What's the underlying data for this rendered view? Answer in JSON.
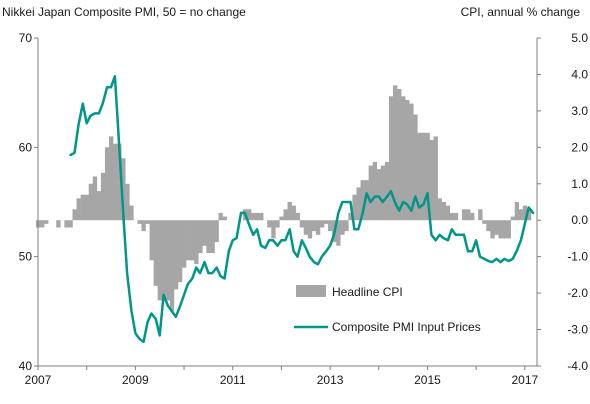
{
  "chart_data": {
    "type": "bar+line",
    "left_axis_label": "Nikkei Japan Composite PMI, 50 = no change",
    "right_axis_label": "CPI, annual % change",
    "left_axis": {
      "min": 40,
      "max": 70,
      "ticks": [
        "40",
        "50",
        "60",
        "70"
      ]
    },
    "right_axis": {
      "min": -4.0,
      "max": 5.0,
      "ticks": [
        "-4.0",
        "-3.0",
        "-2.0",
        "-1.0",
        "0.0",
        "1.0",
        "2.0",
        "3.0",
        "4.0",
        "5.0"
      ]
    },
    "x_axis": {
      "min": 2007.0,
      "max": 2017.25,
      "ticks": [
        "2007",
        "2009",
        "2011",
        "2013",
        "2015",
        "2017"
      ]
    },
    "grid": false,
    "legend_position": "bottom-right",
    "colors": {
      "bars": "#a6a6a6",
      "line": "#00968a",
      "axis": "#7f7f7f"
    },
    "series": [
      {
        "name": "Headline CPI",
        "type": "bar",
        "axis": "right",
        "x": [
          "2007-01",
          "2007-02",
          "2007-03",
          "2007-04",
          "2007-05",
          "2007-06",
          "2007-07",
          "2007-08",
          "2007-09",
          "2007-10",
          "2007-11",
          "2007-12",
          "2008-01",
          "2008-02",
          "2008-03",
          "2008-04",
          "2008-05",
          "2008-06",
          "2008-07",
          "2008-08",
          "2008-09",
          "2008-10",
          "2008-11",
          "2008-12",
          "2009-01",
          "2009-02",
          "2009-03",
          "2009-04",
          "2009-05",
          "2009-06",
          "2009-07",
          "2009-08",
          "2009-09",
          "2009-10",
          "2009-11",
          "2009-12",
          "2010-01",
          "2010-02",
          "2010-03",
          "2010-04",
          "2010-05",
          "2010-06",
          "2010-07",
          "2010-08",
          "2010-09",
          "2010-10",
          "2010-11",
          "2010-12",
          "2011-01",
          "2011-02",
          "2011-03",
          "2011-04",
          "2011-05",
          "2011-06",
          "2011-07",
          "2011-08",
          "2011-09",
          "2011-10",
          "2011-11",
          "2011-12",
          "2012-01",
          "2012-02",
          "2012-03",
          "2012-04",
          "2012-05",
          "2012-06",
          "2012-07",
          "2012-08",
          "2012-09",
          "2012-10",
          "2012-11",
          "2012-12",
          "2013-01",
          "2013-02",
          "2013-03",
          "2013-04",
          "2013-05",
          "2013-06",
          "2013-07",
          "2013-08",
          "2013-09",
          "2013-10",
          "2013-11",
          "2013-12",
          "2014-01",
          "2014-02",
          "2014-03",
          "2014-04",
          "2014-05",
          "2014-06",
          "2014-07",
          "2014-08",
          "2014-09",
          "2014-10",
          "2014-11",
          "2014-12",
          "2015-01",
          "2015-02",
          "2015-03",
          "2015-04",
          "2015-05",
          "2015-06",
          "2015-07",
          "2015-08",
          "2015-09",
          "2015-10",
          "2015-11",
          "2015-12",
          "2016-01",
          "2016-02",
          "2016-03",
          "2016-04",
          "2016-05",
          "2016-06",
          "2016-07",
          "2016-08",
          "2016-09",
          "2016-10",
          "2016-11",
          "2016-12",
          "2017-01",
          "2017-02"
        ],
        "values": [
          -0.2,
          -0.2,
          -0.1,
          0.0,
          0.0,
          -0.2,
          0.0,
          -0.2,
          -0.2,
          0.3,
          0.6,
          0.7,
          0.7,
          1.0,
          1.2,
          0.8,
          1.3,
          2.0,
          2.3,
          2.1,
          2.1,
          1.7,
          1.0,
          0.4,
          0.0,
          -0.1,
          -0.3,
          -0.1,
          -1.1,
          -1.8,
          -2.2,
          -2.2,
          -2.2,
          -2.5,
          -1.9,
          -1.7,
          -1.3,
          -1.1,
          -1.1,
          -1.2,
          -0.9,
          -0.7,
          -0.9,
          -0.9,
          -0.6,
          0.2,
          0.1,
          0.0,
          0.0,
          0.0,
          0.0,
          0.3,
          0.3,
          0.2,
          0.2,
          0.2,
          0.0,
          -0.2,
          -0.5,
          -0.2,
          0.1,
          0.3,
          0.5,
          0.4,
          0.2,
          -0.2,
          -0.4,
          -0.5,
          -0.3,
          -0.4,
          -0.2,
          -0.1,
          -0.3,
          -0.6,
          -0.7,
          -0.4,
          -0.3,
          0.2,
          0.7,
          0.9,
          1.1,
          1.1,
          1.5,
          1.6,
          1.4,
          1.5,
          1.6,
          3.4,
          3.7,
          3.6,
          3.4,
          3.3,
          3.2,
          2.9,
          2.4,
          2.4,
          2.4,
          2.2,
          2.3,
          0.6,
          0.5,
          0.4,
          0.2,
          0.2,
          0.0,
          0.3,
          0.3,
          0.2,
          0.0,
          0.3,
          -0.1,
          -0.3,
          -0.5,
          -0.4,
          -0.5,
          -0.5,
          -0.5,
          0.1,
          0.5,
          0.3,
          0.4,
          0.3
        ]
      },
      {
        "name": "Composite PMI Input Prices",
        "type": "line",
        "axis": "left",
        "x": [
          2007.67,
          2007.75,
          2007.83,
          2007.92,
          2008.0,
          2008.08,
          2008.17,
          2008.25,
          2008.33,
          2008.42,
          2008.5,
          2008.58,
          2008.67,
          2008.75,
          2008.83,
          2008.92,
          2009.0,
          2009.08,
          2009.17,
          2009.25,
          2009.33,
          2009.42,
          2009.5,
          2009.58,
          2009.67,
          2009.75,
          2009.83,
          2009.92,
          2010.0,
          2010.08,
          2010.17,
          2010.25,
          2010.33,
          2010.42,
          2010.5,
          2010.58,
          2010.67,
          2010.75,
          2010.83,
          2010.92,
          2011.0,
          2011.08,
          2011.17,
          2011.25,
          2011.33,
          2011.42,
          2011.5,
          2011.58,
          2011.67,
          2011.75,
          2011.83,
          2011.92,
          2012.0,
          2012.08,
          2012.17,
          2012.25,
          2012.33,
          2012.42,
          2012.5,
          2012.58,
          2012.67,
          2012.75,
          2012.83,
          2012.92,
          2013.0,
          2013.08,
          2013.17,
          2013.25,
          2013.33,
          2013.42,
          2013.5,
          2013.58,
          2013.67,
          2013.75,
          2013.83,
          2013.92,
          2014.0,
          2014.08,
          2014.17,
          2014.25,
          2014.33,
          2014.42,
          2014.5,
          2014.58,
          2014.67,
          2014.75,
          2014.83,
          2014.92,
          2015.0,
          2015.08,
          2015.17,
          2015.25,
          2015.33,
          2015.42,
          2015.5,
          2015.58,
          2015.67,
          2015.75,
          2015.83,
          2015.92,
          2016.0,
          2016.08,
          2016.17,
          2016.25,
          2016.33,
          2016.42,
          2016.5,
          2016.58,
          2016.67,
          2016.75,
          2016.83,
          2016.92,
          2017.0,
          2017.08,
          2017.17
        ],
        "values": [
          59.3,
          59.5,
          62.0,
          64.0,
          62.2,
          62.9,
          63.1,
          63.1,
          64.0,
          65.5,
          65.5,
          66.5,
          60.0,
          54.0,
          48.5,
          45.0,
          43.0,
          42.5,
          42.2,
          44.0,
          44.8,
          44.3,
          42.8,
          46.5,
          45.5,
          45.0,
          44.5,
          45.5,
          46.5,
          47.5,
          48.0,
          49.0,
          48.5,
          49.5,
          48.5,
          48.5,
          49.0,
          48.2,
          48.0,
          50.5,
          51.5,
          51.7,
          54.0,
          54.0,
          53.0,
          52.0,
          52.5,
          51.0,
          50.8,
          51.5,
          51.5,
          51.0,
          51.5,
          51.5,
          52.5,
          50.5,
          50.0,
          51.5,
          50.8,
          50.0,
          49.5,
          49.3,
          50.0,
          50.5,
          51.0,
          52.0,
          54.0,
          55.0,
          55.0,
          55.0,
          52.5,
          52.5,
          54.0,
          55.8,
          55.0,
          55.5,
          55.5,
          55.0,
          55.5,
          56.0,
          55.0,
          54.2,
          55.0,
          54.8,
          54.2,
          55.5,
          54.5,
          54.8,
          55.8,
          52.0,
          51.5,
          52.0,
          51.7,
          51.5,
          52.5,
          52.0,
          52.0,
          52.0,
          50.5,
          50.5,
          51.5,
          50.0,
          49.8,
          49.6,
          49.5,
          49.8,
          49.5,
          49.8,
          49.6,
          49.8,
          50.5,
          51.5,
          53.0,
          54.5,
          54.0
        ]
      }
    ]
  }
}
